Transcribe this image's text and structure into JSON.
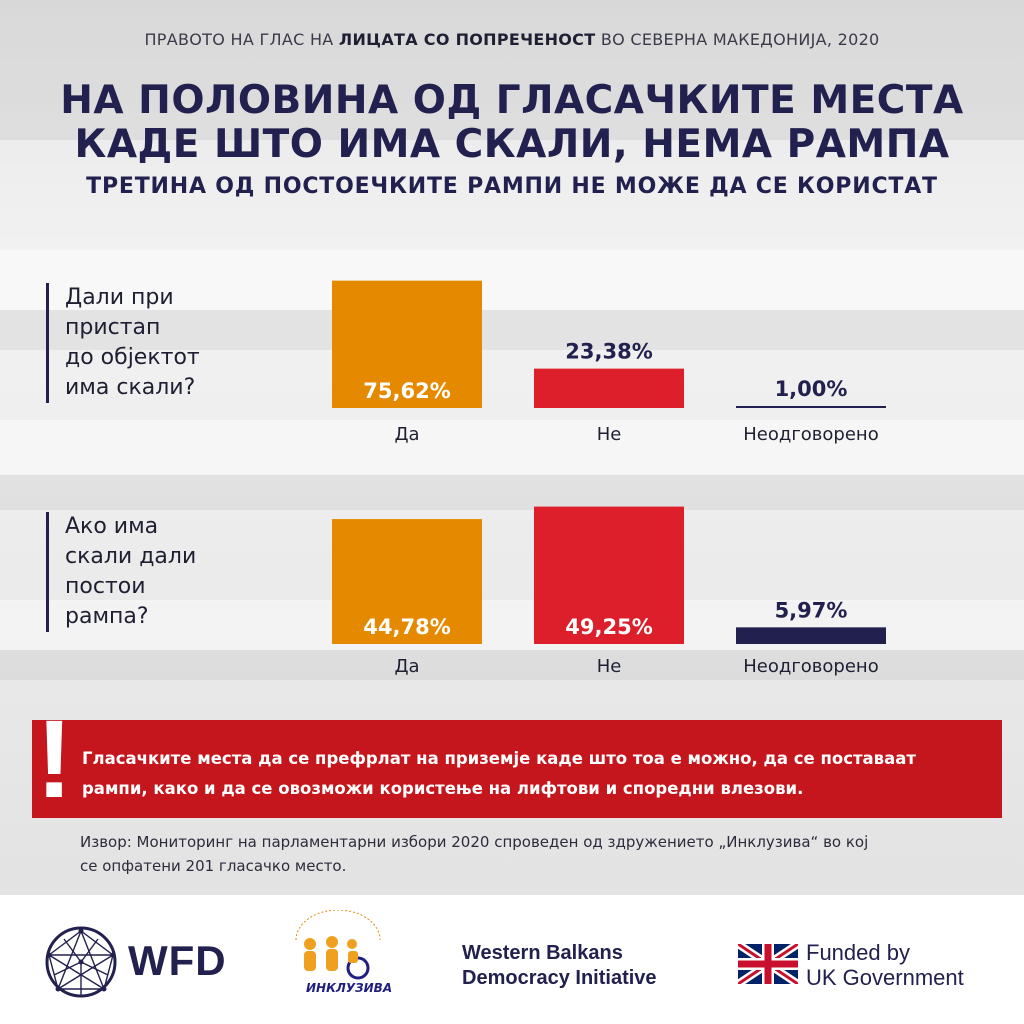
{
  "header": {
    "kicker_part1": "ПРАВОТО НА ГЛАС НА ",
    "kicker_bold": "ЛИЦАТА СО ПОПРЕЧЕНОСТ",
    "kicker_part2": " ВО СЕВЕРНА МАКЕДОНИЈА, 2020",
    "title_line1": "НА ПОЛОВИНА ОД ГЛАСАЧКИТЕ МЕСТА",
    "title_line2": "КАДЕ ШТО ИМА СКАЛИ, НЕМА РАМПА",
    "subtitle": "ТРЕТИНА ОД ПОСТОЕЧКИТЕ РАМПИ НЕ МОЖЕ ДА СЕ КОРИСТАТ"
  },
  "questions": [
    {
      "lines": [
        "Дали при",
        "пристап",
        "до објектот",
        "има скали?"
      ]
    },
    {
      "lines": [
        "Ако има",
        "скали дали",
        "постои",
        "рампа?"
      ]
    }
  ],
  "chart_data": [
    {
      "type": "bar",
      "categories": [
        "Да",
        "Не",
        "Неодговорено"
      ],
      "values": [
        75.62,
        23.38,
        1.0
      ],
      "value_labels": [
        "75,62%",
        "23,38%",
        "1,00%"
      ],
      "colors": [
        "#e58a00",
        "#dc1f2b",
        "#22204e"
      ],
      "ylim": [
        0,
        100
      ]
    },
    {
      "type": "bar",
      "categories": [
        "Да",
        "Не",
        "Неодговорено"
      ],
      "values": [
        44.78,
        49.25,
        5.97
      ],
      "value_labels": [
        "44,78%",
        "49,25%",
        "5,97%"
      ],
      "colors": [
        "#e58a00",
        "#dc1f2b",
        "#22204e"
      ],
      "ylim": [
        0,
        100
      ]
    }
  ],
  "banner": {
    "line1": "Гласачките места да се префрлат на приземје каде што тоа е можно, да се поставаат",
    "line2": "рампи, како и да се овозможи користење на лифтови и споредни влезови."
  },
  "source": {
    "line1": "Извор: Мониторинг на парламентарни избори 2020 спроведен од здружението „Инклузива“ во кој",
    "line2": "се опфатени 201 гласачко место."
  },
  "footer": {
    "wfd": "WFD",
    "inkluziva": "ИНКЛУЗИВА",
    "wbdi_line1": "Western Balkans",
    "wbdi_line2": "Democracy Initiative",
    "uk_line1": "Funded by",
    "uk_line2": "UK Government"
  },
  "colors": {
    "navy": "#22204e",
    "orange": "#e58a00",
    "red": "#dc1f2b",
    "banner_red": "#c4161c"
  }
}
